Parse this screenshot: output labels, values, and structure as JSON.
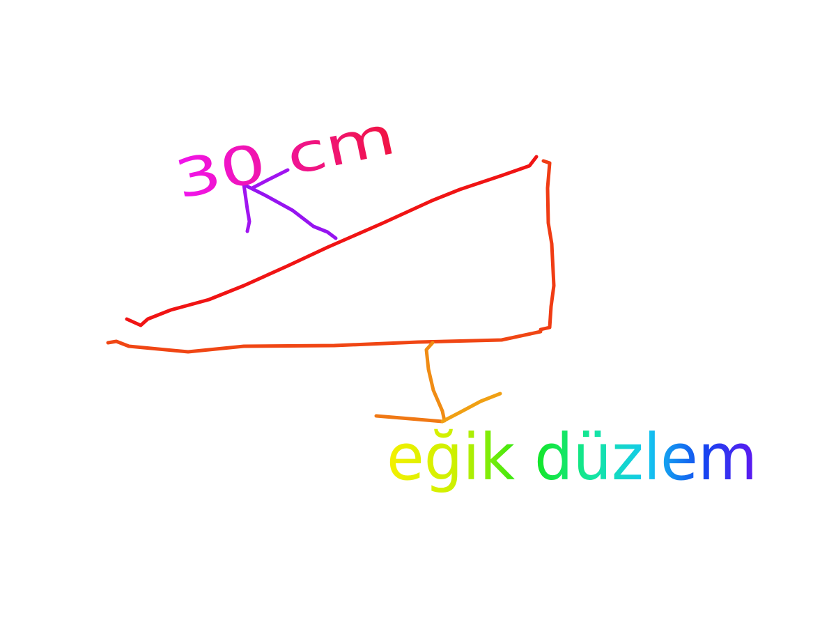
{
  "labels": {
    "length": "30 cm",
    "name": "eğik düzlem"
  }
}
